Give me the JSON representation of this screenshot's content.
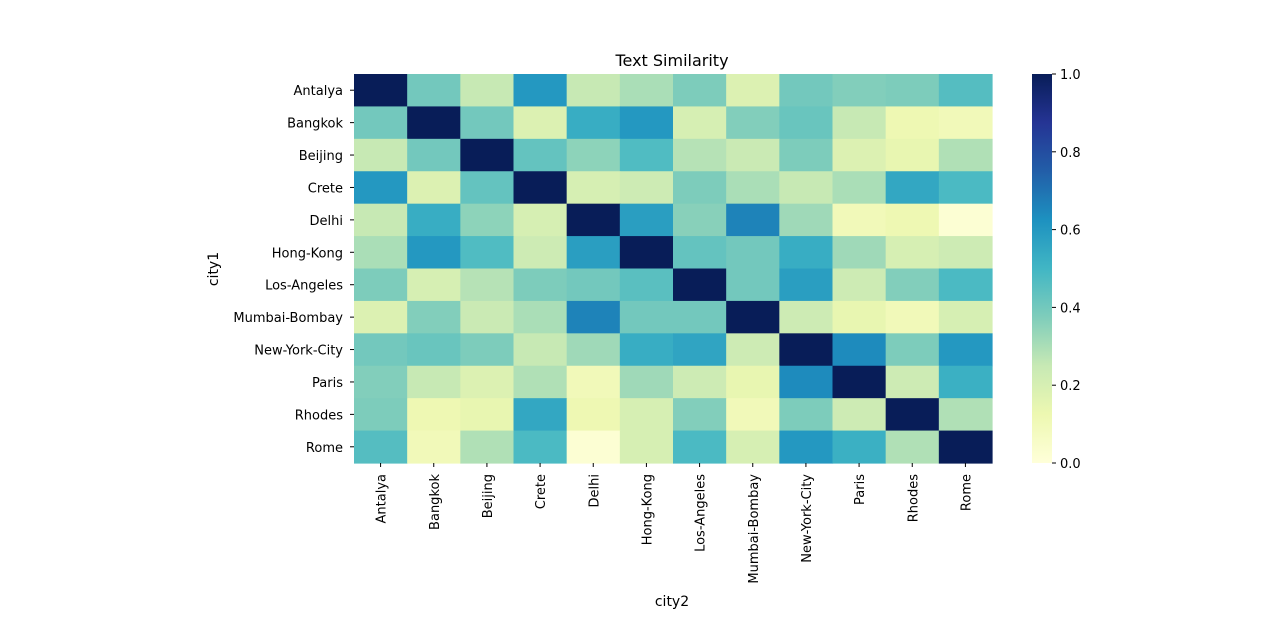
{
  "chart_data": {
    "type": "heatmap",
    "title": "Text Similarity",
    "xlabel": "city2",
    "ylabel": "city1",
    "rows": [
      "Antalya",
      "Bangkok",
      "Beijing",
      "Crete",
      "Delhi",
      "Hong-Kong",
      "Los-Angeles",
      "Mumbai-Bombay",
      "New-York-City",
      "Paris",
      "Rhodes",
      "Rome"
    ],
    "columns": [
      "Antalya",
      "Bangkok",
      "Beijing",
      "Crete",
      "Delhi",
      "Hong-Kong",
      "Los-Angeles",
      "Mumbai-Bombay",
      "New-York-City",
      "Paris",
      "Rhodes",
      "Rome"
    ],
    "values": [
      [
        1.0,
        0.4,
        0.25,
        0.6,
        0.25,
        0.3,
        0.38,
        0.18,
        0.4,
        0.37,
        0.38,
        0.46
      ],
      [
        0.4,
        1.0,
        0.4,
        0.18,
        0.53,
        0.6,
        0.2,
        0.37,
        0.42,
        0.25,
        0.12,
        0.1
      ],
      [
        0.25,
        0.4,
        1.0,
        0.43,
        0.35,
        0.47,
        0.28,
        0.24,
        0.38,
        0.18,
        0.14,
        0.29
      ],
      [
        0.6,
        0.18,
        0.43,
        1.0,
        0.2,
        0.23,
        0.38,
        0.3,
        0.25,
        0.3,
        0.55,
        0.48
      ],
      [
        0.25,
        0.53,
        0.35,
        0.2,
        1.0,
        0.58,
        0.36,
        0.66,
        0.32,
        0.1,
        0.12,
        0.02
      ],
      [
        0.3,
        0.6,
        0.47,
        0.23,
        0.58,
        1.0,
        0.43,
        0.4,
        0.53,
        0.32,
        0.2,
        0.23
      ],
      [
        0.38,
        0.2,
        0.28,
        0.38,
        0.4,
        0.45,
        1.0,
        0.4,
        0.58,
        0.23,
        0.37,
        0.48
      ],
      [
        0.18,
        0.37,
        0.24,
        0.3,
        0.66,
        0.4,
        0.4,
        1.0,
        0.23,
        0.14,
        0.1,
        0.2
      ],
      [
        0.4,
        0.42,
        0.38,
        0.25,
        0.32,
        0.53,
        0.56,
        0.23,
        1.0,
        0.64,
        0.38,
        0.6
      ],
      [
        0.37,
        0.25,
        0.18,
        0.29,
        0.1,
        0.32,
        0.23,
        0.14,
        0.64,
        1.0,
        0.23,
        0.52
      ],
      [
        0.38,
        0.12,
        0.14,
        0.55,
        0.12,
        0.2,
        0.37,
        0.1,
        0.38,
        0.23,
        1.0,
        0.29
      ],
      [
        0.46,
        0.1,
        0.29,
        0.48,
        0.02,
        0.2,
        0.48,
        0.2,
        0.6,
        0.52,
        0.29,
        1.0
      ]
    ],
    "colorbar": {
      "min": 0.0,
      "max": 1.0,
      "ticks": [
        "0.0",
        "0.2",
        "0.4",
        "0.6",
        "0.8",
        "1.0"
      ],
      "colormap": "YlGnBu",
      "colors": [
        "#ffffd9",
        "#edf8b1",
        "#c7e9b4",
        "#7fcdbb",
        "#41b6c4",
        "#1d91c0",
        "#225ea8",
        "#253494",
        "#081d58"
      ]
    },
    "grid": false,
    "legend": "none"
  }
}
